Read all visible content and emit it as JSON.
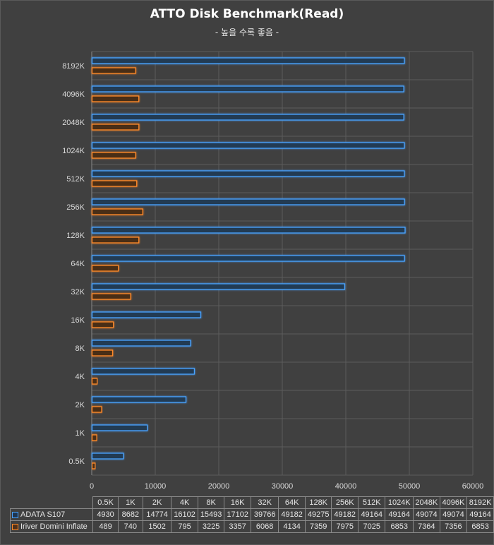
{
  "chart_data": {
    "type": "bar",
    "orientation": "horizontal",
    "title": "ATTO Disk Benchmark(Read)",
    "subtitle": "- 높을 수록 좋음 -",
    "categories": [
      "0.5K",
      "1K",
      "2K",
      "4K",
      "8K",
      "16K",
      "32K",
      "64K",
      "128K",
      "256K",
      "512K",
      "1024K",
      "2048K",
      "4096K",
      "8192K"
    ],
    "series": [
      {
        "name": "ADATA S107",
        "color": "#4aa3ff",
        "values": [
          4930,
          8682,
          14774,
          16102,
          15493,
          17102,
          39766,
          49182,
          49275,
          49182,
          49164,
          49164,
          49074,
          49074,
          49164
        ]
      },
      {
        "name": "Iriver Domini Inflate",
        "color": "#ff8a2a",
        "values": [
          489,
          740,
          1502,
          795,
          3225,
          3357,
          6068,
          4134,
          7359,
          7975,
          7025,
          6853,
          7364,
          7356,
          6853
        ]
      }
    ],
    "x_ticks": [
      "0",
      "10000",
      "20000",
      "30000",
      "40000",
      "50000",
      "60000"
    ],
    "xlim": [
      0,
      60000
    ],
    "grid": true,
    "legend": "data-table-below"
  }
}
